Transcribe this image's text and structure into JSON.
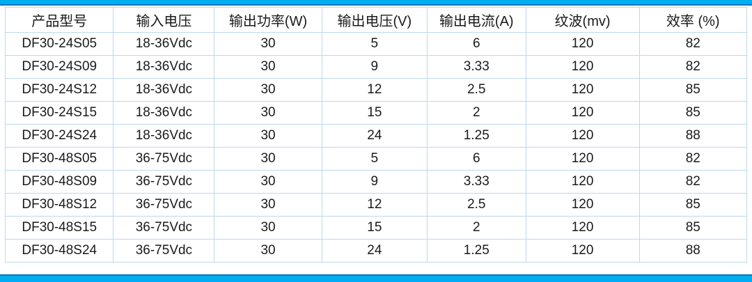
{
  "colors": {
    "accent_bar": "#00AEEF",
    "accent_bar_edge": "#0074C5",
    "grid_line": "#BDD7EE",
    "text": "#1A1A1A",
    "background": "#FFFFFF"
  },
  "table": {
    "columns": [
      {
        "key": "model",
        "label": "产品型号"
      },
      {
        "key": "input-voltage",
        "label": "输入电压"
      },
      {
        "key": "output-power",
        "label": "输出功率(W)"
      },
      {
        "key": "output-voltage",
        "label": "输出电压(V)"
      },
      {
        "key": "output-current",
        "label": "输出电流(A)"
      },
      {
        "key": "ripple",
        "label": "纹波(mv)"
      },
      {
        "key": "efficiency",
        "label": "效率 (%)"
      }
    ],
    "rows": [
      [
        "DF30-24S05",
        "18-36Vdc",
        "30",
        "5",
        "6",
        "120",
        "82"
      ],
      [
        "DF30-24S09",
        "18-36Vdc",
        "30",
        "9",
        "3.33",
        "120",
        "82"
      ],
      [
        "DF30-24S12",
        "18-36Vdc",
        "30",
        "12",
        "2.5",
        "120",
        "85"
      ],
      [
        "DF30-24S15",
        "18-36Vdc",
        "30",
        "15",
        "2",
        "120",
        "85"
      ],
      [
        "DF30-24S24",
        "18-36Vdc",
        "30",
        "24",
        "1.25",
        "120",
        "88"
      ],
      [
        "DF30-48S05",
        "36-75Vdc",
        "30",
        "5",
        "6",
        "120",
        "82"
      ],
      [
        "DF30-48S09",
        "36-75Vdc",
        "30",
        "9",
        "3.33",
        "120",
        "82"
      ],
      [
        "DF30-48S12",
        "36-75Vdc",
        "30",
        "12",
        "2.5",
        "120",
        "85"
      ],
      [
        "DF30-48S15",
        "36-75Vdc",
        "30",
        "15",
        "2",
        "120",
        "85"
      ],
      [
        "DF30-48S24",
        "36-75Vdc",
        "30",
        "24",
        "1.25",
        "120",
        "88"
      ]
    ]
  }
}
